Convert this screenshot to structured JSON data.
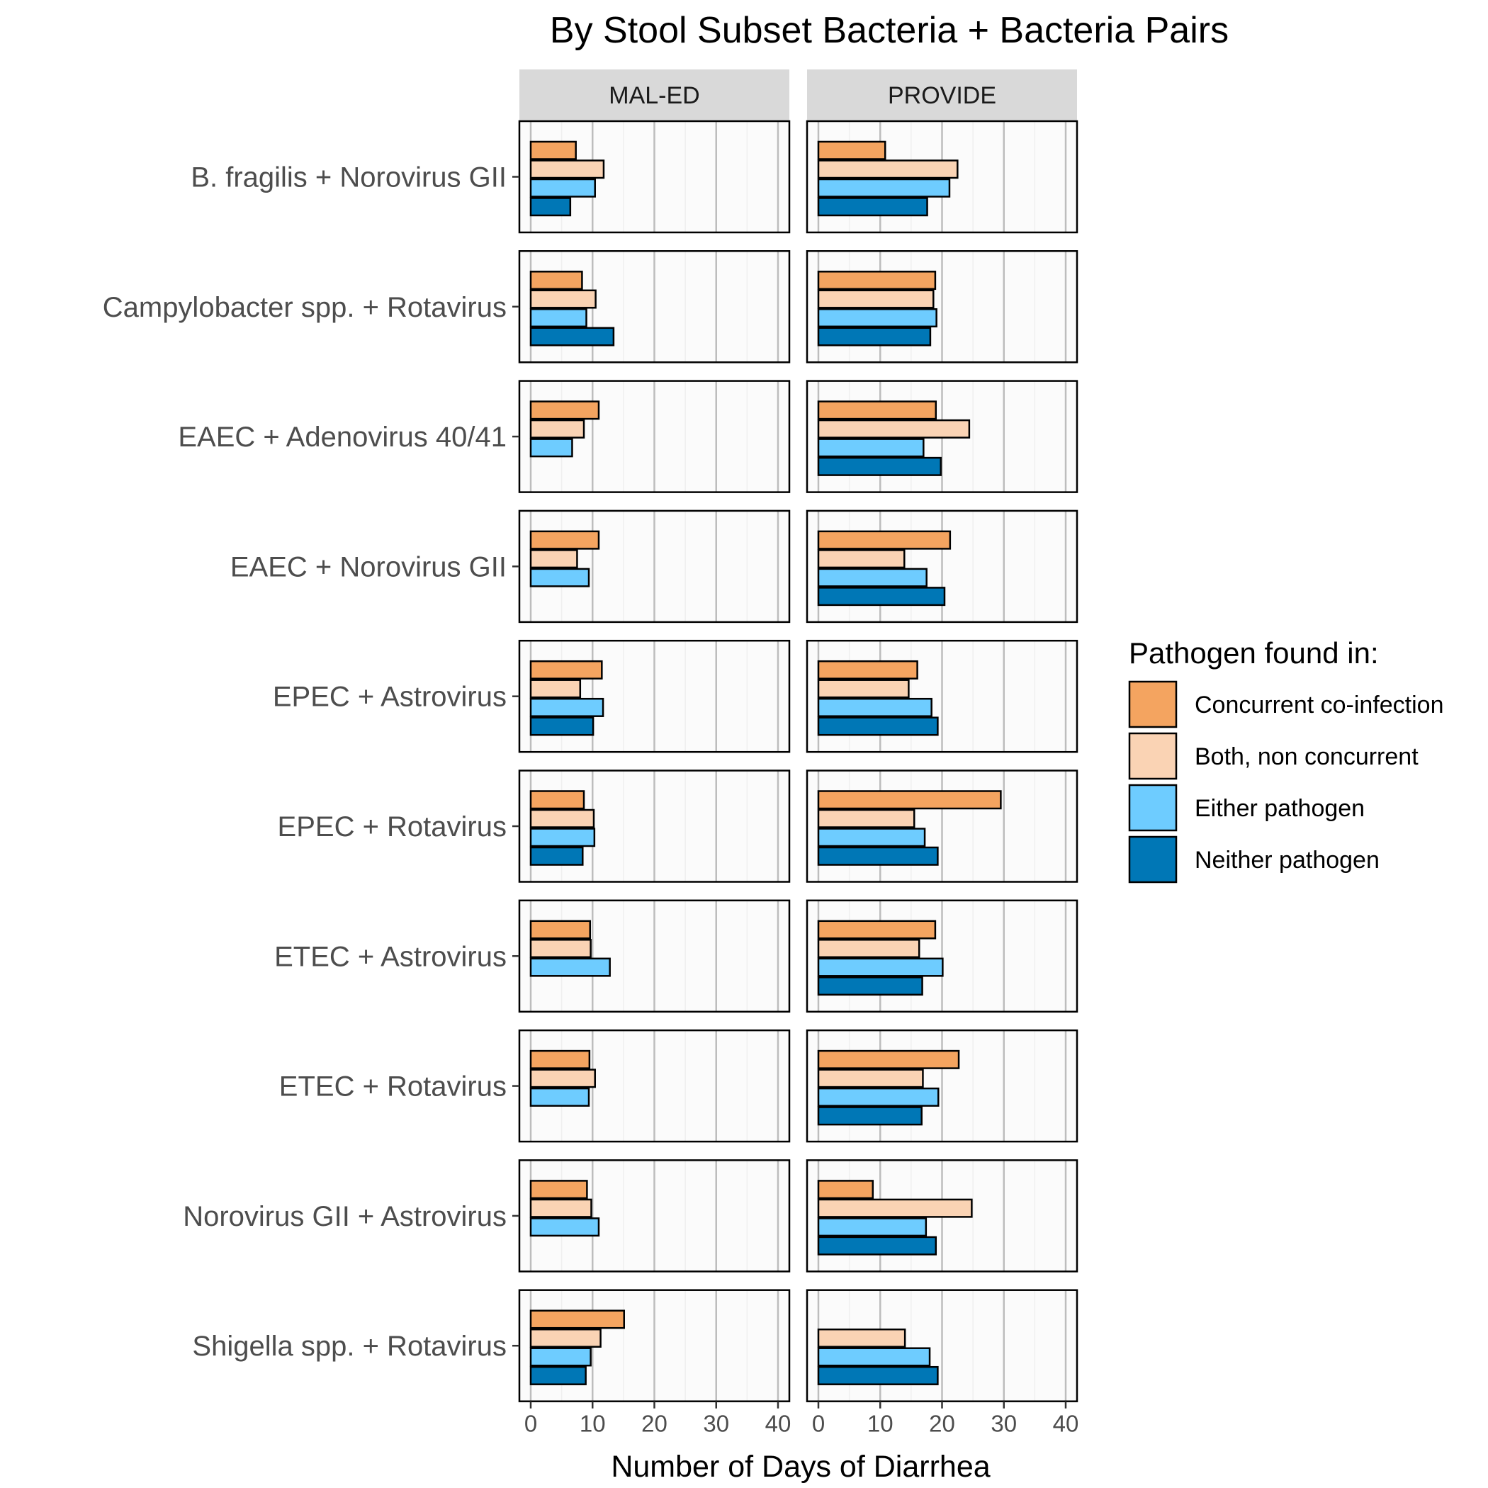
{
  "chart_data": {
    "type": "bar",
    "orientation": "horizontal",
    "title": "By Stool Subset Bacteria + Bacteria Pairs",
    "xlabel": "Number of Days of Diarrhea",
    "ylabel": "",
    "xlim": [
      0,
      40
    ],
    "x_ticks": [
      "0",
      "10",
      "20",
      "30",
      "40"
    ],
    "grid": true,
    "legend": {
      "title": "Pathogen found in:",
      "position": "right"
    },
    "facets": [
      "MAL-ED",
      "PROVIDE"
    ],
    "categories": [
      "B. fragilis + Norovirus GII",
      "Campylobacter spp. + Rotavirus",
      "EAEC + Adenovirus 40/41",
      "EAEC + Norovirus GII",
      "EPEC + Astrovirus",
      "EPEC + Rotavirus",
      "ETEC + Astrovirus",
      "ETEC + Rotavirus",
      "Norovirus GII + Astrovirus",
      "Shigella spp. + Rotavirus"
    ],
    "series": [
      {
        "name": "Concurrent co-infection",
        "color": "#F4A460",
        "values": {
          "MAL-ED": [
            7.3,
            8.3,
            11,
            11,
            11.5,
            8.6,
            9.6,
            9.5,
            9.1,
            15.1
          ],
          "PROVIDE": [
            10.8,
            18.9,
            19,
            21.3,
            16,
            29.5,
            18.9,
            22.7,
            8.8,
            null
          ]
        }
      },
      {
        "name": "Both, non concurrent",
        "color": "#FAD3B4",
        "values": {
          "MAL-ED": [
            11.8,
            10.5,
            8.6,
            7.5,
            8,
            10.2,
            9.7,
            10.4,
            9.8,
            11.3
          ],
          "PROVIDE": [
            22.5,
            18.6,
            24.4,
            13.9,
            14.6,
            15.5,
            16.3,
            16.9,
            24.8,
            14
          ]
        }
      },
      {
        "name": "Either pathogen",
        "color": "#6ECCFF",
        "values": {
          "MAL-ED": [
            10.4,
            9,
            6.7,
            9.4,
            11.7,
            10.3,
            12.8,
            9.4,
            11,
            9.7
          ],
          "PROVIDE": [
            21.2,
            19.1,
            17,
            17.5,
            18.3,
            17.2,
            20.1,
            19.4,
            17.4,
            18
          ]
        }
      },
      {
        "name": "Neither pathogen",
        "color": "#0077B6",
        "values": {
          "MAL-ED": [
            6.4,
            13.4,
            null,
            null,
            10.1,
            8.4,
            null,
            null,
            null,
            8.9
          ],
          "PROVIDE": [
            17.6,
            18.1,
            19.8,
            20.4,
            19.3,
            19.3,
            16.8,
            16.7,
            19,
            19.3
          ]
        }
      }
    ]
  }
}
